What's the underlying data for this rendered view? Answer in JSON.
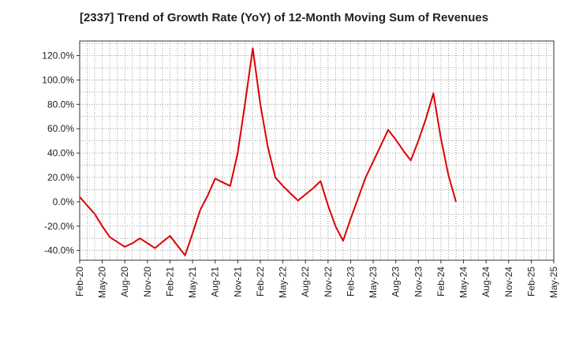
{
  "chart_data": {
    "type": "line",
    "title": "[2337]  Trend of Growth Rate (YoY) of 12-Month Moving Sum of Revenues",
    "xlabel": "",
    "ylabel": "",
    "ylim": [
      -48,
      132
    ],
    "yticks": [
      -40,
      -20,
      0,
      20,
      40,
      60,
      80,
      100,
      120
    ],
    "ytick_labels": [
      "-40.0%",
      "-20.0%",
      "0.0%",
      "20.0%",
      "40.0%",
      "60.0%",
      "80.0%",
      "100.0%",
      "120.0%"
    ],
    "x_start": "Feb-20",
    "xtick_labels": [
      "Feb-20",
      "May-20",
      "Aug-20",
      "Nov-20",
      "Feb-21",
      "May-21",
      "Aug-21",
      "Nov-21",
      "Feb-22",
      "May-22",
      "Aug-22",
      "Nov-22",
      "Feb-23",
      "May-23",
      "Aug-23",
      "Nov-23",
      "Feb-24",
      "May-24",
      "Aug-24",
      "Nov-24",
      "Feb-25",
      "May-25"
    ],
    "grid": true,
    "line_color": "#dd0000",
    "series": [
      {
        "values": [
          4,
          -3,
          -10,
          -20,
          -29,
          -33,
          -37,
          -34,
          -30,
          -34,
          -38,
          -33,
          -28,
          -36,
          -44,
          -26,
          -7,
          5,
          19,
          16,
          13,
          40,
          82,
          126,
          80,
          45,
          20,
          13,
          7,
          1,
          6,
          11,
          17,
          -3,
          -20,
          -32,
          -14,
          3,
          20,
          33,
          46,
          59,
          51,
          42,
          34,
          50,
          68,
          89,
          52,
          22,
          0
        ]
      }
    ]
  }
}
